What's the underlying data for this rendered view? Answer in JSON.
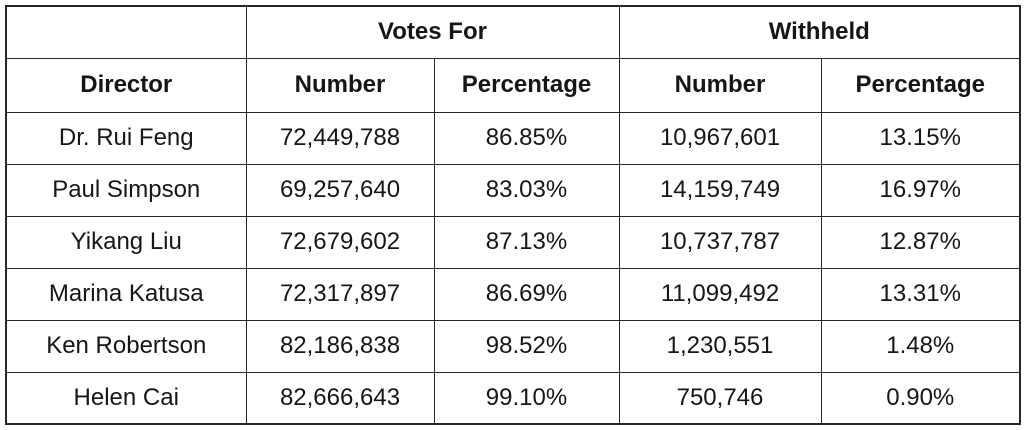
{
  "table": {
    "colors": {
      "border": "#262626",
      "text": "#161616",
      "background": "#ffffff"
    },
    "group_headers": {
      "votes_for": "Votes For",
      "withheld": "Withheld"
    },
    "column_headers": {
      "director": "Director",
      "vf_number": "Number",
      "vf_percentage": "Percentage",
      "wh_number": "Number",
      "wh_percentage": "Percentage"
    },
    "rows": [
      {
        "director": "Dr. Rui Feng",
        "vf_number": "72,449,788",
        "vf_percentage": "86.85%",
        "wh_number": "10,967,601",
        "wh_percentage": "13.15%"
      },
      {
        "director": "Paul Simpson",
        "vf_number": "69,257,640",
        "vf_percentage": "83.03%",
        "wh_number": "14,159,749",
        "wh_percentage": "16.97%"
      },
      {
        "director": "Yikang Liu",
        "vf_number": "72,679,602",
        "vf_percentage": "87.13%",
        "wh_number": "10,737,787",
        "wh_percentage": "12.87%"
      },
      {
        "director": "Marina Katusa",
        "vf_number": "72,317,897",
        "vf_percentage": "86.69%",
        "wh_number": "11,099,492",
        "wh_percentage": "13.31%"
      },
      {
        "director": "Ken Robertson",
        "vf_number": "82,186,838",
        "vf_percentage": "98.52%",
        "wh_number": "1,230,551",
        "wh_percentage": "1.48%"
      },
      {
        "director": "Helen Cai",
        "vf_number": "82,666,643",
        "vf_percentage": "99.10%",
        "wh_number": "750,746",
        "wh_percentage": "0.90%"
      }
    ]
  }
}
